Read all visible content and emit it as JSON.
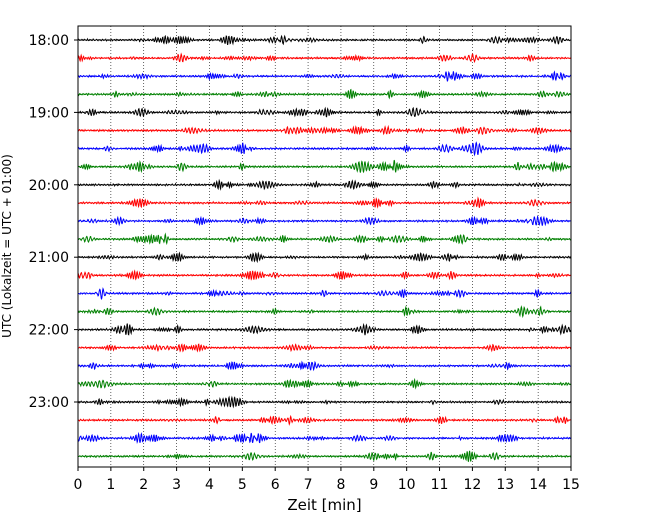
{
  "chart_data": {
    "type": "line",
    "title": "",
    "xlabel": "Zeit  [min]",
    "ylabel": "UTC (Lokalzeit = UTC + 01:00)",
    "xlim": [
      0,
      15
    ],
    "x_ticks": [
      "0",
      "1",
      "2",
      "3",
      "4",
      "5",
      "6",
      "7",
      "8",
      "9",
      "10",
      "11",
      "12",
      "13",
      "14",
      "15"
    ],
    "y_ticks": [
      {
        "time": "18:00",
        "trace": 0
      },
      {
        "time": "19:00",
        "trace": 4
      },
      {
        "time": "20:00",
        "trace": 8
      },
      {
        "time": "21:00",
        "trace": 12
      },
      {
        "time": "22:00",
        "trace": 16
      },
      {
        "time": "23:00",
        "trace": 20
      }
    ],
    "grid": "vertical dotted lines at each minute",
    "trace_interval_minutes": 15,
    "trace_colors": [
      "#000000",
      "#ff0000",
      "#0000ff",
      "#008000"
    ],
    "traces": [
      {
        "start": "18:00"
      },
      {
        "start": "18:15"
      },
      {
        "start": "18:30"
      },
      {
        "start": "18:45"
      },
      {
        "start": "19:00"
      },
      {
        "start": "19:15"
      },
      {
        "start": "19:30"
      },
      {
        "start": "19:45"
      },
      {
        "start": "20:00"
      },
      {
        "start": "20:15"
      },
      {
        "start": "20:30"
      },
      {
        "start": "20:45"
      },
      {
        "start": "21:00"
      },
      {
        "start": "21:15"
      },
      {
        "start": "21:30"
      },
      {
        "start": "21:45"
      },
      {
        "start": "22:00"
      },
      {
        "start": "22:15"
      },
      {
        "start": "22:30"
      },
      {
        "start": "22:45"
      },
      {
        "start": "23:00"
      },
      {
        "start": "23:15"
      },
      {
        "start": "23:30"
      },
      {
        "start": "23:45"
      }
    ]
  }
}
